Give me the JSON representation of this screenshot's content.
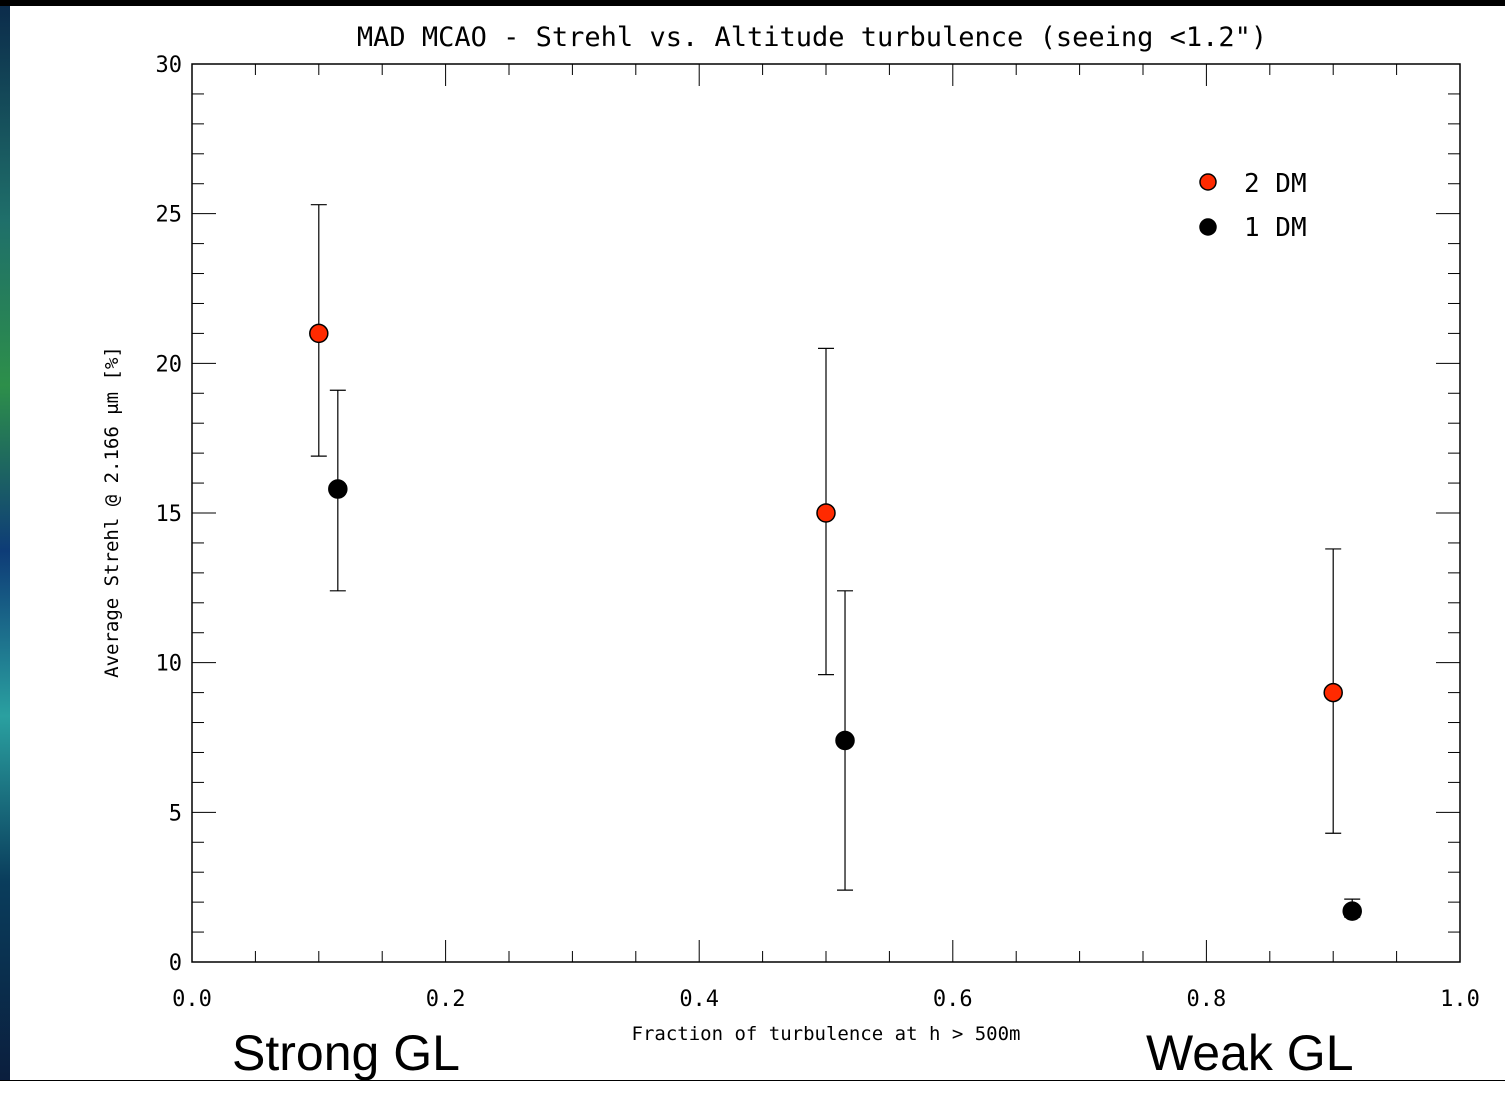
{
  "chart_data": {
    "type": "scatter",
    "title": "MAD MCAO - Strehl vs. Altitude turbulence (seeing <1.2\")",
    "xlabel": "Fraction of turbulence at h > 500m",
    "ylabel": "Average Strehl @ 2.166 μm [%]",
    "xlim": [
      0.0,
      1.0
    ],
    "ylim": [
      0,
      30
    ],
    "x_ticks": [
      0.0,
      0.2,
      0.4,
      0.6,
      0.8,
      1.0
    ],
    "x_tick_labels": [
      "0.0",
      "0.2",
      "0.4",
      "0.6",
      "0.8",
      "1.0"
    ],
    "y_ticks": [
      0,
      5,
      10,
      15,
      20,
      25,
      30
    ],
    "y_tick_labels": [
      "0",
      "5",
      "10",
      "15",
      "20",
      "25",
      "30"
    ],
    "grid": false,
    "legend_position": "top-right",
    "series": [
      {
        "name": "2 DM",
        "color": "#ff2a00",
        "points": [
          {
            "x": 0.1,
            "y": 21.0,
            "err_low": 16.9,
            "err_high": 25.3
          },
          {
            "x": 0.5,
            "y": 15.0,
            "err_low": 9.6,
            "err_high": 20.5
          },
          {
            "x": 0.9,
            "y": 9.0,
            "err_low": 4.3,
            "err_high": 13.8
          }
        ]
      },
      {
        "name": "1 DM",
        "color": "#000000",
        "points": [
          {
            "x": 0.115,
            "y": 15.8,
            "err_low": 12.4,
            "err_high": 19.1
          },
          {
            "x": 0.515,
            "y": 7.4,
            "err_low": 2.4,
            "err_high": 12.4
          },
          {
            "x": 0.915,
            "y": 1.7,
            "err_low": 1.5,
            "err_high": 2.1
          }
        ]
      }
    ],
    "annotations": [
      {
        "text": "Strong GL",
        "anchor": "below-left"
      },
      {
        "text": "Weak GL",
        "anchor": "below-right"
      }
    ]
  }
}
